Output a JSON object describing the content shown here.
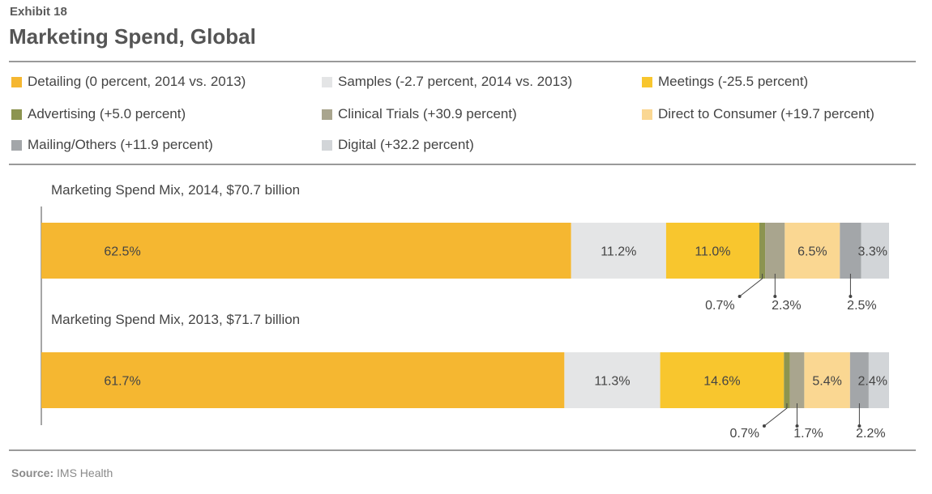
{
  "header": {
    "exhibit": "Exhibit 18",
    "title": "Marketing Spend, Global"
  },
  "legend": [
    {
      "label": "Detailing (0 percent, 2014 vs. 2013)",
      "color": "#F5B731"
    },
    {
      "label": "Samples (-2.7 percent, 2014 vs. 2013)",
      "color": "#E4E5E6"
    },
    {
      "label": "Meetings (-25.5 percent)",
      "color": "#F8C62E"
    },
    {
      "label": "Advertising (+5.0 percent)",
      "color": "#8C9450"
    },
    {
      "label": "Clinical Trials (+30.9 percent)",
      "color": "#A9A58E"
    },
    {
      "label": "Direct to Consumer (+19.7 percent)",
      "color": "#FAD792"
    },
    {
      "label": "Mailing/Others (+11.9 percent)",
      "color": "#A3A6A9"
    },
    {
      "label": "Digital (+32.2 percent)",
      "color": "#D2D5D8"
    }
  ],
  "source": {
    "label": "Source:",
    "text": "IMS Health"
  },
  "chart_data": {
    "type": "bar",
    "orientation": "horizontal-stacked",
    "xlim": [
      0,
      100
    ],
    "categories": [
      "Detailing",
      "Samples",
      "Meetings",
      "Advertising",
      "Clinical Trials",
      "Direct to Consumer",
      "Mailing/Others",
      "Digital"
    ],
    "bars": [
      {
        "name": "Marketing Spend Mix, 2014, $70.7 billion",
        "values": [
          62.5,
          11.2,
          11.0,
          0.7,
          2.3,
          6.5,
          2.5,
          3.3
        ],
        "labels": [
          "62.5%",
          "11.2%",
          "11.0%",
          "0.7%",
          "2.3%",
          "6.5%",
          "2.5%",
          "3.3%"
        ]
      },
      {
        "name": "Marketing Spend Mix, 2013, $71.7 billion",
        "values": [
          61.7,
          11.3,
          14.6,
          0.7,
          1.7,
          5.4,
          2.2,
          2.4
        ],
        "labels": [
          "61.7%",
          "11.3%",
          "14.6%",
          "0.7%",
          "1.7%",
          "5.4%",
          "2.2%",
          "2.4%"
        ]
      }
    ]
  }
}
